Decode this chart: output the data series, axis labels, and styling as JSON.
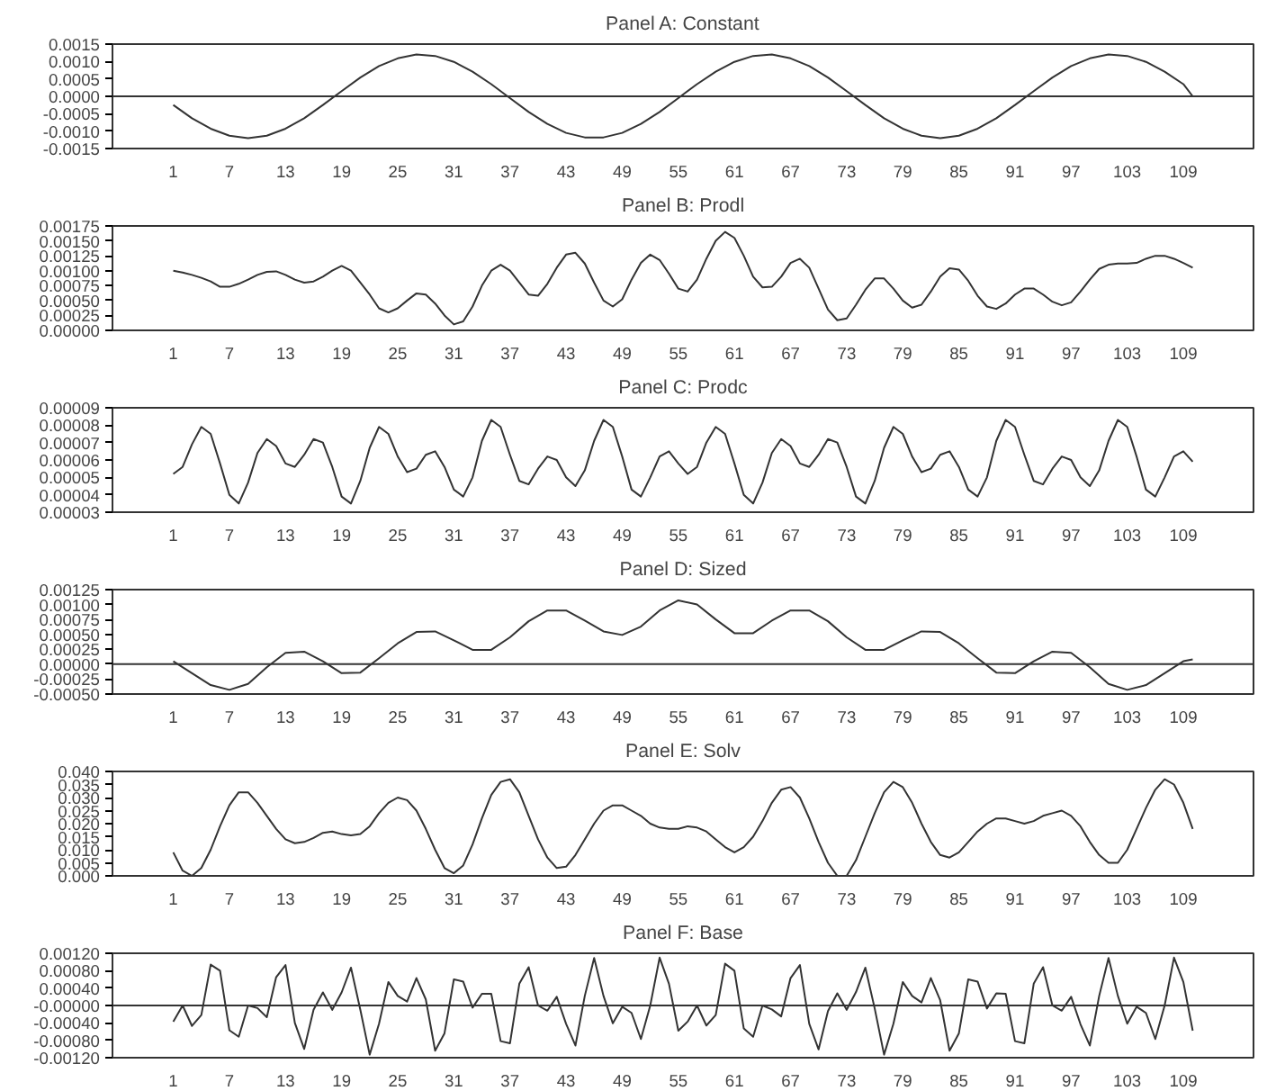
{
  "chart_data": [
    {
      "type": "line",
      "title": "Panel A: Constant",
      "xlim": [
        -5.5,
        116.5
      ],
      "xticks": [
        1,
        7,
        13,
        19,
        25,
        31,
        37,
        43,
        49,
        55,
        61,
        67,
        73,
        79,
        85,
        91,
        97,
        103,
        109
      ],
      "ylim": [
        -0.0015,
        0.0015
      ],
      "yticks": [
        {
          "value": -0.0015,
          "label": "-0.0015"
        },
        {
          "value": -0.001,
          "label": "-0.0010"
        },
        {
          "value": -0.0005,
          "label": "-0.0005"
        },
        {
          "value": 0,
          "label": "0.0000"
        },
        {
          "value": 0.0005,
          "label": "0.0005"
        },
        {
          "value": 0.001,
          "label": "0.0010"
        },
        {
          "value": 0.0015,
          "label": "0.0015"
        }
      ],
      "grid": false,
      "ref_lines": [
        {
          "axis": "y",
          "value": 0,
          "color": "#333333"
        }
      ],
      "series": [
        {
          "color": "#333333",
          "x": [
            1,
            3,
            5,
            7,
            9,
            11,
            13,
            15,
            17,
            19,
            21,
            23,
            25,
            27,
            29,
            31,
            33,
            35,
            37,
            39,
            41,
            43,
            45,
            47,
            49,
            51,
            53,
            55,
            57,
            59,
            61,
            63,
            65,
            67,
            69,
            71,
            73,
            75,
            77,
            79,
            81,
            83,
            85,
            87,
            89,
            91,
            93,
            95,
            97,
            99,
            101,
            103,
            105,
            107,
            109,
            110
          ],
          "values": [
            -0.00025,
            -0.00063,
            -0.00093,
            -0.00113,
            -0.0012,
            -0.00113,
            -0.00093,
            -0.00063,
            -0.00025,
            0.00015,
            0.00054,
            0.00087,
            0.00109,
            0.0012,
            0.00116,
            0.00099,
            0.00071,
            0.00035,
            -5e-05,
            -0.00045,
            -0.00079,
            -0.00105,
            -0.00118,
            -0.00118,
            -0.00105,
            -0.00079,
            -0.00045,
            -5e-05,
            0.00035,
            0.00071,
            0.00099,
            0.00116,
            0.0012,
            0.00109,
            0.00087,
            0.00054,
            0.00015,
            -0.00025,
            -0.00063,
            -0.00093,
            -0.00113,
            -0.0012,
            -0.00113,
            -0.00093,
            -0.00063,
            -0.00025,
            0.00015,
            0.00054,
            0.00087,
            0.00109,
            0.0012,
            0.00116,
            0.00099,
            0.00071,
            0.00035,
            0.0
          ]
        }
      ]
    },
    {
      "type": "line",
      "title": "Panel B: Prodl",
      "xlim": [
        -5.5,
        116.5
      ],
      "xticks": [
        1,
        7,
        13,
        19,
        25,
        31,
        37,
        43,
        49,
        55,
        61,
        67,
        73,
        79,
        85,
        91,
        97,
        103,
        109
      ],
      "ylim": [
        0,
        0.00175
      ],
      "yticks": [
        {
          "value": 0,
          "label": "0.00000"
        },
        {
          "value": 0.00025,
          "label": "0.00025"
        },
        {
          "value": 0.0005,
          "label": "0.00050"
        },
        {
          "value": 0.00075,
          "label": "0.00075"
        },
        {
          "value": 0.001,
          "label": "0.00100"
        },
        {
          "value": 0.00125,
          "label": "0.00125"
        },
        {
          "value": 0.0015,
          "label": "0.00150"
        },
        {
          "value": 0.00175,
          "label": "0.00175"
        }
      ],
      "grid": false,
      "x": [
        1,
        2,
        3,
        4,
        5,
        6,
        7,
        8,
        9,
        10,
        11,
        12,
        13,
        14,
        15,
        16,
        17,
        18,
        19,
        20,
        21,
        22,
        23,
        24,
        25,
        26,
        27,
        28,
        29,
        30,
        31,
        32,
        33,
        34,
        35,
        36,
        37,
        38,
        39,
        40,
        41,
        42,
        43,
        44,
        45,
        46,
        47,
        48,
        49,
        50,
        51,
        52,
        53,
        54,
        55,
        56,
        57,
        58,
        59,
        60,
        61,
        62,
        63,
        64,
        65,
        66,
        67,
        68,
        69,
        70,
        71,
        72,
        73,
        74,
        75,
        76,
        77,
        78,
        79,
        80,
        81,
        82,
        83,
        84,
        85,
        86,
        87,
        88,
        89,
        90,
        91,
        92,
        93,
        94,
        95,
        96,
        97,
        98,
        99,
        100,
        101,
        102,
        103,
        104,
        105,
        106,
        107,
        108,
        109,
        110
      ],
      "series": [
        {
          "color": "#333333",
          "values": [
            0.001,
            0.00097,
            0.00093,
            0.00088,
            0.00082,
            0.00073,
            0.00073,
            0.00078,
            0.00085,
            0.00093,
            0.00098,
            0.00099,
            0.00093,
            0.00085,
            0.0008,
            0.00082,
            0.0009,
            0.001,
            0.00108,
            0.001,
            0.0008,
            0.0006,
            0.00037,
            0.0003,
            0.00037,
            0.0005,
            0.00062,
            0.0006,
            0.00045,
            0.00025,
            0.0001,
            0.00015,
            0.0004,
            0.00075,
            0.001,
            0.0011,
            0.001,
            0.0008,
            0.0006,
            0.00058,
            0.00078,
            0.00105,
            0.00127,
            0.0013,
            0.00112,
            0.0008,
            0.0005,
            0.0004,
            0.00052,
            0.00085,
            0.00113,
            0.00127,
            0.00118,
            0.00095,
            0.0007,
            0.00065,
            0.00085,
            0.0012,
            0.0015,
            0.00165,
            0.00155,
            0.00125,
            0.0009,
            0.00072,
            0.00073,
            0.0009,
            0.00113,
            0.0012,
            0.00105,
            0.0007,
            0.00035,
            0.00017,
            0.0002,
            0.00043,
            0.00068,
            0.00087,
            0.00087,
            0.0007,
            0.0005,
            0.00038,
            0.00043,
            0.00065,
            0.0009,
            0.00104,
            0.00102,
            0.00083,
            0.00058,
            0.0004,
            0.00036,
            0.00045,
            0.0006,
            0.0007,
            0.0007,
            0.0006,
            0.00048,
            0.00042,
            0.00047,
            0.00065,
            0.00085,
            0.00103,
            0.0011,
            0.00112,
            0.00112,
            0.00113,
            0.0012,
            0.00125,
            0.00125,
            0.0012,
            0.00113,
            0.00105
          ]
        }
      ]
    },
    {
      "type": "line",
      "title": "Panel C: Prodc",
      "xlim": [
        -5.5,
        116.5
      ],
      "xticks": [
        1,
        7,
        13,
        19,
        25,
        31,
        37,
        43,
        49,
        55,
        61,
        67,
        73,
        79,
        85,
        91,
        97,
        103,
        109
      ],
      "ylim": [
        3e-05,
        9e-05
      ],
      "yticks": [
        {
          "value": 3e-05,
          "label": "0.00003"
        },
        {
          "value": 4e-05,
          "label": "0.00004"
        },
        {
          "value": 5e-05,
          "label": "0.00005"
        },
        {
          "value": 6e-05,
          "label": "0.00006"
        },
        {
          "value": 7e-05,
          "label": "0.00007"
        },
        {
          "value": 8e-05,
          "label": "0.00008"
        },
        {
          "value": 9e-05,
          "label": "0.00009"
        }
      ],
      "grid": false,
      "x": [
        1,
        2,
        3,
        4,
        5,
        6,
        7,
        8,
        9,
        10,
        11,
        12,
        13,
        14,
        15,
        16,
        17,
        18,
        19,
        20,
        21,
        22,
        23,
        24,
        25,
        26,
        27,
        28,
        29,
        30,
        31,
        32,
        33,
        34,
        35,
        36,
        37,
        38,
        39,
        40,
        41,
        42,
        43,
        44,
        45,
        46,
        47,
        48,
        49,
        50,
        51,
        52,
        53,
        54,
        55,
        56,
        57,
        58,
        59,
        60,
        61,
        62,
        63,
        64,
        65,
        66,
        67,
        68,
        69,
        70,
        71,
        72,
        73,
        74,
        75,
        76,
        77,
        78,
        79,
        80,
        81,
        82,
        83,
        84,
        85,
        86,
        87,
        88,
        89,
        90,
        91,
        92,
        93,
        94,
        95,
        96,
        97,
        98,
        99,
        100,
        101,
        102,
        103,
        104,
        105,
        106,
        107,
        108,
        109,
        110
      ],
      "series": [
        {
          "color": "#333333",
          "values": [
            5.2e-05,
            5.6e-05,
            6.9e-05,
            7.9e-05,
            7.5e-05,
            5.8e-05,
            4e-05,
            3.5e-05,
            4.7e-05,
            6.4e-05,
            7.2e-05,
            6.8e-05,
            5.8e-05,
            5.6e-05,
            6.3e-05,
            7.2e-05,
            7e-05,
            5.6e-05,
            3.9e-05,
            3.5e-05,
            4.8e-05,
            6.7e-05,
            7.9e-05,
            7.5e-05,
            6.2e-05,
            5.3e-05,
            5.5e-05,
            6.3e-05,
            6.5e-05,
            5.6e-05,
            4.3e-05,
            3.9e-05,
            5e-05,
            7.1e-05,
            8.3e-05,
            7.9e-05,
            6.3e-05,
            4.8e-05,
            4.6e-05,
            5.5e-05,
            6.2e-05,
            6e-05,
            5e-05,
            4.5e-05,
            5.4e-05,
            7.1e-05,
            8.3e-05,
            7.9e-05,
            6.2e-05,
            4.3e-05,
            3.9e-05,
            5e-05,
            6.2e-05,
            6.5e-05,
            5.8e-05,
            5.2e-05,
            5.6e-05,
            7e-05,
            7.9e-05,
            7.5e-05,
            5.8e-05,
            4e-05,
            3.5e-05,
            4.7e-05,
            6.4e-05,
            7.2e-05,
            6.8e-05,
            5.8e-05,
            5.6e-05,
            6.3e-05,
            7.2e-05,
            7e-05,
            5.6e-05,
            3.9e-05,
            3.5e-05,
            4.8e-05,
            6.7e-05,
            7.9e-05,
            7.5e-05,
            6.2e-05,
            5.3e-05,
            5.5e-05,
            6.3e-05,
            6.5e-05,
            5.6e-05,
            4.3e-05,
            3.9e-05,
            5e-05,
            7.1e-05,
            8.3e-05,
            7.9e-05,
            6.3e-05,
            4.8e-05,
            4.6e-05,
            5.5e-05,
            6.2e-05,
            6e-05,
            5e-05,
            4.5e-05,
            5.4e-05,
            7.1e-05,
            8.3e-05,
            7.9e-05,
            6.2e-05,
            4.3e-05,
            3.9e-05,
            5e-05,
            6.2e-05,
            6.5e-05,
            5.9e-05
          ]
        }
      ]
    },
    {
      "type": "line",
      "title": "Panel D: Sized",
      "xlim": [
        -5.5,
        116.5
      ],
      "xticks": [
        1,
        7,
        13,
        19,
        25,
        31,
        37,
        43,
        49,
        55,
        61,
        67,
        73,
        79,
        85,
        91,
        97,
        103,
        109
      ],
      "ylim": [
        -0.0005,
        0.00125
      ],
      "yticks": [
        {
          "value": -0.0005,
          "label": "-0.00050"
        },
        {
          "value": -0.00025,
          "label": "-0.00025"
        },
        {
          "value": 0,
          "label": "0.00000"
        },
        {
          "value": 0.00025,
          "label": "0.00025"
        },
        {
          "value": 0.0005,
          "label": "0.00050"
        },
        {
          "value": 0.00075,
          "label": "0.00075"
        },
        {
          "value": 0.001,
          "label": "0.00100"
        },
        {
          "value": 0.00125,
          "label": "0.00125"
        }
      ],
      "grid": false,
      "ref_lines": [
        {
          "axis": "y",
          "value": 0,
          "color": "#333333"
        }
      ],
      "series": [
        {
          "color": "#333333",
          "x": [
            1,
            3,
            5,
            7,
            9,
            11,
            13,
            15,
            17,
            19,
            21,
            23,
            25,
            27,
            29,
            31,
            33,
            35,
            37,
            39,
            41,
            43,
            45,
            47,
            49,
            51,
            53,
            55,
            57,
            59,
            61,
            63,
            65,
            67,
            69,
            71,
            73,
            75,
            77,
            79,
            81,
            83,
            85,
            87,
            89,
            91,
            93,
            95,
            97,
            99,
            101,
            103,
            105,
            107,
            109,
            110
          ],
          "values": [
            5e-05,
            -0.00015,
            -0.00035,
            -0.00043,
            -0.00033,
            -5e-05,
            0.00019,
            0.00021,
            5e-05,
            -0.00015,
            -0.00014,
            0.0001,
            0.00035,
            0.00054,
            0.00055,
            0.0004,
            0.00024,
            0.00024,
            0.00045,
            0.00072,
            0.0009,
            0.0009,
            0.00073,
            0.00055,
            0.00049,
            0.00063,
            0.0009,
            0.00107,
            0.001,
            0.00075,
            0.00052,
            0.00052,
            0.00073,
            0.0009,
            0.0009,
            0.00072,
            0.00045,
            0.00024,
            0.00024,
            0.0004,
            0.00055,
            0.00054,
            0.00035,
            0.0001,
            -0.00014,
            -0.00015,
            5e-05,
            0.00021,
            0.00019,
            -5e-05,
            -0.00033,
            -0.00043,
            -0.00035,
            -0.00015,
            5e-05,
            8e-05
          ]
        }
      ]
    },
    {
      "type": "line",
      "title": "Panel E: Solv",
      "xlim": [
        -5.5,
        116.5
      ],
      "xticks": [
        1,
        7,
        13,
        19,
        25,
        31,
        37,
        43,
        49,
        55,
        61,
        67,
        73,
        79,
        85,
        91,
        97,
        103,
        109
      ],
      "ylim": [
        0,
        0.04
      ],
      "yticks": [
        {
          "value": 0,
          "label": "0.000"
        },
        {
          "value": 0.005,
          "label": "0.005"
        },
        {
          "value": 0.01,
          "label": "0.010"
        },
        {
          "value": 0.015,
          "label": "0.015"
        },
        {
          "value": 0.02,
          "label": "0.020"
        },
        {
          "value": 0.025,
          "label": "0.025"
        },
        {
          "value": 0.03,
          "label": "0.030"
        },
        {
          "value": 0.035,
          "label": "0.035"
        },
        {
          "value": 0.04,
          "label": "0.040"
        }
      ],
      "grid": false,
      "x": [
        1,
        2,
        3,
        4,
        5,
        6,
        7,
        8,
        9,
        10,
        11,
        12,
        13,
        14,
        15,
        16,
        17,
        18,
        19,
        20,
        21,
        22,
        23,
        24,
        25,
        26,
        27,
        28,
        29,
        30,
        31,
        32,
        33,
        34,
        35,
        36,
        37,
        38,
        39,
        40,
        41,
        42,
        43,
        44,
        45,
        46,
        47,
        48,
        49,
        50,
        51,
        52,
        53,
        54,
        55,
        56,
        57,
        58,
        59,
        60,
        61,
        62,
        63,
        64,
        65,
        66,
        67,
        68,
        69,
        70,
        71,
        72,
        73,
        74,
        75,
        76,
        77,
        78,
        79,
        80,
        81,
        82,
        83,
        84,
        85,
        86,
        87,
        88,
        89,
        90,
        91,
        92,
        93,
        94,
        95,
        96,
        97,
        98,
        99,
        100,
        101,
        102,
        103,
        104,
        105,
        106,
        107,
        108,
        109,
        110
      ],
      "series": [
        {
          "color": "#333333",
          "values": [
            0.009,
            0.002,
            0.0,
            0.003,
            0.01,
            0.019,
            0.027,
            0.032,
            0.032,
            0.028,
            0.023,
            0.018,
            0.014,
            0.0125,
            0.013,
            0.0145,
            0.0165,
            0.017,
            0.016,
            0.0155,
            0.016,
            0.019,
            0.024,
            0.028,
            0.03,
            0.029,
            0.025,
            0.018,
            0.01,
            0.003,
            0.001,
            0.004,
            0.012,
            0.022,
            0.031,
            0.036,
            0.037,
            0.032,
            0.023,
            0.014,
            0.007,
            0.003,
            0.0035,
            0.008,
            0.014,
            0.02,
            0.025,
            0.027,
            0.027,
            0.025,
            0.023,
            0.02,
            0.0185,
            0.018,
            0.018,
            0.019,
            0.0185,
            0.017,
            0.014,
            0.011,
            0.009,
            0.011,
            0.015,
            0.021,
            0.028,
            0.033,
            0.034,
            0.03,
            0.022,
            0.013,
            0.005,
            0.0,
            0.0,
            0.006,
            0.015,
            0.024,
            0.032,
            0.036,
            0.034,
            0.028,
            0.02,
            0.013,
            0.008,
            0.007,
            0.009,
            0.013,
            0.017,
            0.02,
            0.022,
            0.022,
            0.021,
            0.02,
            0.021,
            0.023,
            0.024,
            0.025,
            0.023,
            0.019,
            0.013,
            0.008,
            0.005,
            0.005,
            0.01,
            0.018,
            0.026,
            0.033,
            0.037,
            0.035,
            0.028,
            0.018
          ]
        }
      ]
    },
    {
      "type": "line",
      "title": "Panel F: Base",
      "xlim": [
        -5.5,
        116.5
      ],
      "xticks": [
        1,
        7,
        13,
        19,
        25,
        31,
        37,
        43,
        49,
        55,
        61,
        67,
        73,
        79,
        85,
        91,
        97,
        103,
        109
      ],
      "ylim": [
        -0.0012,
        0.0012
      ],
      "yticks": [
        {
          "value": -0.0012,
          "label": "-0.00120"
        },
        {
          "value": -0.0008,
          "label": "-0.00080"
        },
        {
          "value": -0.0004,
          "label": "-0.00040"
        },
        {
          "value": 0,
          "label": "-0.00000"
        },
        {
          "value": 0.0004,
          "label": "0.00040"
        },
        {
          "value": 0.0008,
          "label": "0.00080"
        },
        {
          "value": 0.0012,
          "label": "0.00120"
        }
      ],
      "grid": false,
      "ref_lines": [
        {
          "axis": "y",
          "value": 0,
          "color": "#333333"
        }
      ],
      "x": [
        1,
        2,
        3,
        4,
        5,
        6,
        7,
        8,
        9,
        10,
        11,
        12,
        13,
        14,
        15,
        16,
        17,
        18,
        19,
        20,
        21,
        22,
        23,
        24,
        25,
        26,
        27,
        28,
        29,
        30,
        31,
        32,
        33,
        34,
        35,
        36,
        37,
        38,
        39,
        40,
        41,
        42,
        43,
        44,
        45,
        46,
        47,
        48,
        49,
        50,
        51,
        52,
        53,
        54,
        55,
        56,
        57,
        58,
        59,
        60,
        61,
        62,
        63,
        64,
        65,
        66,
        67,
        68,
        69,
        70,
        71,
        72,
        73,
        74,
        75,
        76,
        77,
        78,
        79,
        80,
        81,
        82,
        83,
        84,
        85,
        86,
        87,
        88,
        89,
        90,
        91,
        92,
        93,
        94,
        95,
        96,
        97,
        98,
        99,
        100,
        101,
        102,
        103,
        104,
        105,
        106,
        107,
        108,
        109,
        110
      ],
      "series": [
        {
          "color": "#333333",
          "values": [
            -0.00037,
            0.0,
            -0.00047,
            -0.00022,
            0.00094,
            0.0008,
            -0.00057,
            -0.00072,
            0.0,
            -6e-05,
            -0.00027,
            0.00065,
            0.00093,
            -0.0004,
            -0.001,
            -0.0001,
            0.0003,
            -0.0001,
            0.0003,
            0.00087,
            -0.0001,
            -0.00113,
            -0.00042,
            0.00054,
            0.00022,
            9e-05,
            0.00063,
            0.00014,
            -0.00104,
            -0.00064,
            0.0006,
            0.00055,
            -5e-05,
            0.00027,
            0.00027,
            -0.00082,
            -0.00087,
            0.0005,
            0.00088,
            0.0,
            -0.00012,
            0.0002,
            -0.00042,
            -0.00092,
            0.00022,
            0.00109,
            0.00022,
            -0.00041,
            -3e-05,
            -0.00017,
            -0.00077,
            0.0,
            0.0011,
            0.0005,
            -0.00058,
            -0.00037,
            0.0,
            -0.00046,
            -0.00022,
            0.00096,
            0.0008,
            -0.00053,
            -0.00072,
            0.0,
            -9e-05,
            -0.00025,
            0.00063,
            0.00093,
            -0.00042,
            -0.00101,
            -0.00013,
            0.00028,
            -0.0001,
            0.00031,
            0.00087,
            -7e-05,
            -0.00113,
            -0.00042,
            0.00054,
            0.00022,
            7e-05,
            0.00063,
            0.00012,
            -0.00104,
            -0.00064,
            0.0006,
            0.00055,
            -7e-05,
            0.00028,
            0.00027,
            -0.00082,
            -0.00087,
            0.0005,
            0.00088,
            0.0,
            -0.00012,
            0.0002,
            -0.00043,
            -0.00092,
            0.00022,
            0.00109,
            0.00022,
            -0.00042,
            -3e-05,
            -0.00017,
            -0.00077,
            0.0,
            0.0011,
            0.00054,
            -0.00058
          ]
        }
      ]
    }
  ]
}
